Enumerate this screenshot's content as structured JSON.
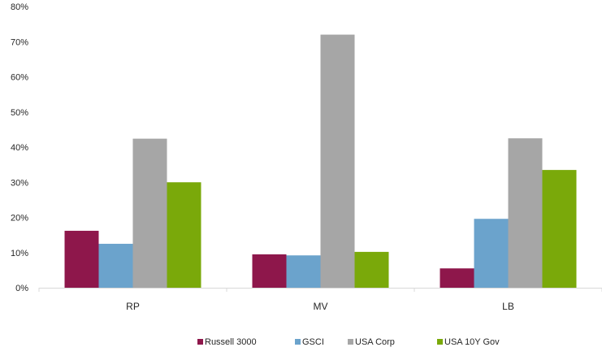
{
  "chart_data": {
    "type": "bar",
    "categories": [
      "RP",
      "MV",
      "LB"
    ],
    "series": [
      {
        "name": "Russell 3000",
        "color": "#8e174b",
        "values": [
          16.2,
          9.5,
          5.5
        ]
      },
      {
        "name": "GSCI",
        "color": "#6ba3cc",
        "values": [
          12.5,
          9.2,
          19.6
        ]
      },
      {
        "name": "USA Corp",
        "color": "#a6a6a6",
        "values": [
          42.4,
          72.0,
          42.5
        ]
      },
      {
        "name": "USA 10Y Gov",
        "color": "#7aa90a",
        "values": [
          30.0,
          10.2,
          33.5
        ]
      }
    ],
    "y_ticks": [
      "0%",
      "10%",
      "20%",
      "30%",
      "40%",
      "50%",
      "60%",
      "70%",
      "80%"
    ],
    "ylim": [
      0,
      80
    ],
    "grid": false,
    "legend_position": "bottom",
    "title": "",
    "xlabel": "",
    "ylabel": ""
  }
}
